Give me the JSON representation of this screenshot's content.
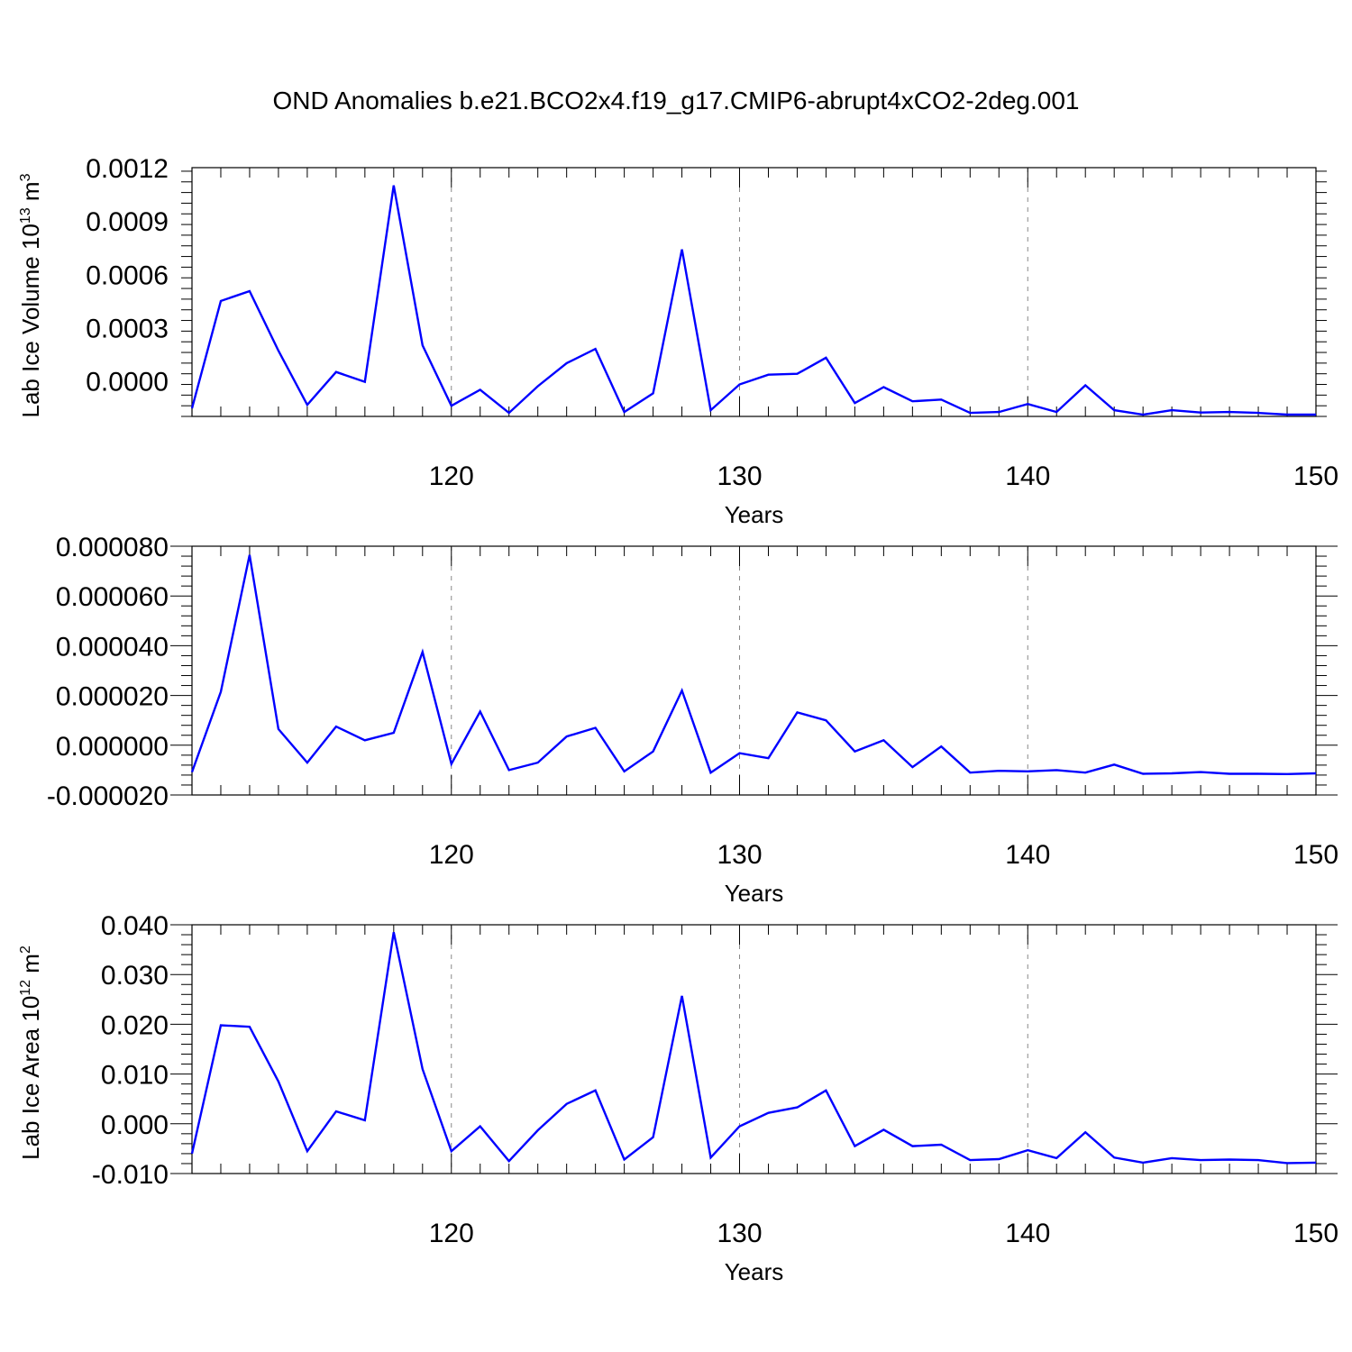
{
  "title": "OND Anomalies b.e21.BCO2x4.f19_g17.CMIP6-abrupt4xCO2-2deg.001",
  "colors": {
    "line": "#0000ff",
    "grid": "#888888",
    "axis": "#000000"
  },
  "chart_data": [
    {
      "type": "line",
      "title": "",
      "xlabel": "Years",
      "ylabel": "Lab Ice Volume 10",
      "ylabel_exp": "13",
      "ylabel_unit": " m",
      "ylabel_unit_exp": "3",
      "xlim": [
        111,
        150
      ],
      "ylim": [
        -0.0002,
        0.0012
      ],
      "xticks": [
        120,
        130,
        140,
        150
      ],
      "xtick_labels": [
        "120",
        "130",
        "140",
        "150"
      ],
      "yticks": [
        0.0,
        0.0003,
        0.0006,
        0.0009,
        0.0012
      ],
      "ytick_labels": [
        "0.0000",
        "0.0003",
        "0.0006",
        "0.0009",
        "0.0012"
      ],
      "grid": "x-dashed",
      "series": [
        {
          "x": [
            111,
            112,
            113,
            114,
            115,
            116,
            117,
            118,
            119,
            120,
            121,
            122,
            123,
            124,
            125,
            126,
            127,
            128,
            129,
            130,
            131,
            132,
            133,
            134,
            135,
            136,
            137,
            138,
            139,
            140,
            141,
            142,
            143,
            144,
            145,
            146,
            147,
            148,
            149,
            150
          ],
          "y": [
            -0.000155,
            0.00045,
            0.000505,
            0.00017,
            -0.000135,
            5e-05,
            -5e-06,
            0.0011,
            0.0002,
            -0.00014,
            -5e-05,
            -0.00018,
            -3e-05,
            0.0001,
            0.00018,
            -0.000175,
            -7e-05,
            0.00074,
            -0.000165,
            -2e-05,
            3.5e-05,
            4e-05,
            0.00013,
            -0.000125,
            -3.5e-05,
            -0.000115,
            -0.000105,
            -0.00018,
            -0.000175,
            -0.00013,
            -0.000175,
            -2.5e-05,
            -0.000165,
            -0.00019,
            -0.000165,
            -0.000178,
            -0.000175,
            -0.00018,
            -0.00019,
            -0.00019
          ]
        }
      ]
    },
    {
      "type": "line",
      "title": "",
      "xlabel": "Years",
      "ylabel": "",
      "ylabel_exp": "",
      "ylabel_unit": "",
      "ylabel_unit_exp": "",
      "xlim": [
        111,
        150
      ],
      "ylim": [
        -2e-05,
        8e-05
      ],
      "xticks": [
        120,
        130,
        140,
        150
      ],
      "xtick_labels": [
        "120",
        "130",
        "140",
        "150"
      ],
      "yticks": [
        -2e-05,
        0.0,
        2e-05,
        4e-05,
        6e-05,
        8e-05
      ],
      "ytick_labels": [
        "-0.000020",
        "0.000000",
        "0.000020",
        "0.000040",
        "0.000060",
        "0.000080"
      ],
      "grid": "x-dashed",
      "series": [
        {
          "x": [
            111,
            112,
            113,
            114,
            115,
            116,
            117,
            118,
            119,
            120,
            121,
            122,
            123,
            124,
            125,
            126,
            127,
            128,
            129,
            130,
            131,
            132,
            133,
            134,
            135,
            136,
            137,
            138,
            139,
            140,
            141,
            142,
            143,
            144,
            145,
            146,
            147,
            148,
            149,
            150
          ],
          "y": [
            -1.08e-05,
            2.15e-05,
            7.65e-05,
            6.5e-06,
            -7e-06,
            7.5e-06,
            2e-06,
            5e-06,
            3.75e-05,
            -7.5e-06,
            1.35e-05,
            -1e-05,
            -7e-06,
            3.5e-06,
            7e-06,
            -1.05e-05,
            -2.5e-06,
            2.2e-05,
            -1.1e-05,
            -3.2e-06,
            -5.2e-06,
            1.32e-05,
            1e-05,
            -2.5e-06,
            2e-06,
            -8.8e-06,
            -5e-07,
            -1.1e-05,
            -1.03e-05,
            -1.05e-05,
            -1e-05,
            -1.1e-05,
            -7.8e-06,
            -1.15e-05,
            -1.13e-05,
            -1.08e-05,
            -1.15e-05,
            -1.15e-05,
            -1.16e-05,
            -1.13e-05
          ]
        }
      ]
    },
    {
      "type": "line",
      "title": "",
      "xlabel": "Years",
      "ylabel": "Lab Ice Area 10",
      "ylabel_exp": "12",
      "ylabel_unit": " m",
      "ylabel_unit_exp": "2",
      "xlim": [
        111,
        150
      ],
      "ylim": [
        -0.01,
        0.04
      ],
      "xticks": [
        120,
        130,
        140,
        150
      ],
      "xtick_labels": [
        "120",
        "130",
        "140",
        "150"
      ],
      "yticks": [
        -0.01,
        0.0,
        0.01,
        0.02,
        0.03,
        0.04
      ],
      "ytick_labels": [
        "-0.010",
        "0.000",
        "0.010",
        "0.020",
        "0.030",
        "0.040"
      ],
      "grid": "x-dashed",
      "series": [
        {
          "x": [
            111,
            112,
            113,
            114,
            115,
            116,
            117,
            118,
            119,
            120,
            121,
            122,
            123,
            124,
            125,
            126,
            127,
            128,
            129,
            130,
            131,
            132,
            133,
            134,
            135,
            136,
            137,
            138,
            139,
            140,
            141,
            142,
            143,
            144,
            145,
            146,
            147,
            148,
            149,
            150
          ],
          "y": [
            -0.006,
            0.0198,
            0.0195,
            0.0085,
            -0.0055,
            0.0025,
            0.0007,
            0.0385,
            0.011,
            -0.0055,
            -0.0005,
            -0.0075,
            -0.0013,
            0.004,
            0.0067,
            -0.0072,
            -0.0027,
            0.0257,
            -0.0068,
            -0.0005,
            0.0022,
            0.0033,
            0.0067,
            -0.0045,
            -0.0012,
            -0.0045,
            -0.0042,
            -0.0073,
            -0.0071,
            -0.0053,
            -0.0069,
            -0.0017,
            -0.0068,
            -0.0078,
            -0.0069,
            -0.0073,
            -0.0072,
            -0.0073,
            -0.0079,
            -0.0078
          ]
        }
      ]
    }
  ]
}
